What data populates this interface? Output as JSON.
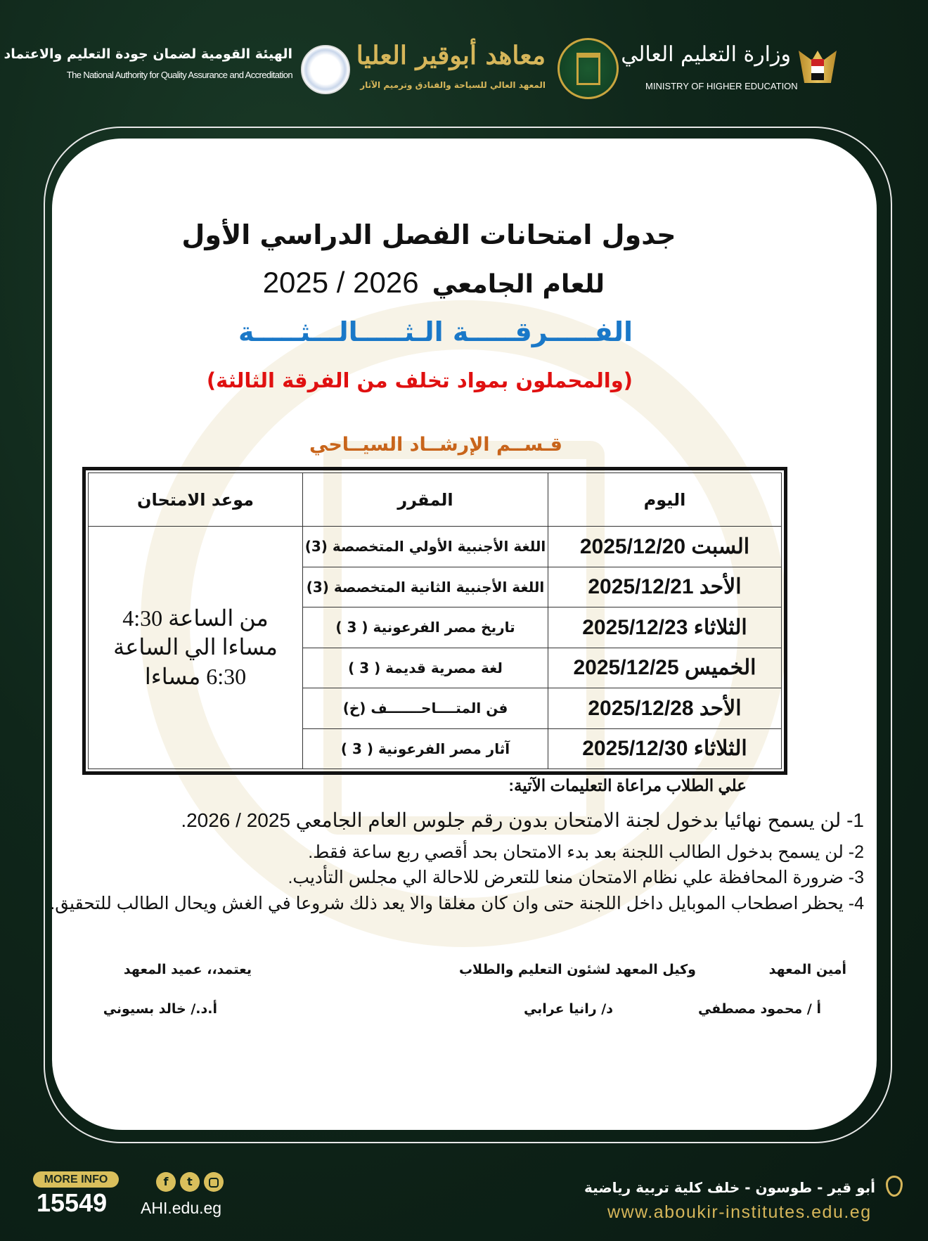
{
  "header": {
    "naqaae_ar": "الهيئة القومية لضمان جودة التعليم والاعتماد",
    "naqaae_en": "The National Authority for Quality Assurance and Accreditation",
    "aboukir_ar": "معاهد أبوقير العليا",
    "aboukir_sub": "المعهد العالي للسياحة والفنادق وترميم الآثار",
    "ministry_ar": "وزارة التعليم العالي",
    "ministry_en": "MINISTRY OF HIGHER EDUCATION"
  },
  "document": {
    "title_line1": "جدول امتحانات الفصل الدراسي الأول",
    "title_line2_label": "للعام الجامعي",
    "title_line2_year": "2025 / 2026",
    "level": "الفـــــرقـــــة الـثـــــالـــثـــــة",
    "subtitle": "(والمحملون بمواد تخلف من الفرقة الثالثة)",
    "department": "قـســم الإرشــاد السيــاحي",
    "colors": {
      "level": "#1a78c8",
      "subtitle": "#e01010",
      "department": "#c8641a"
    }
  },
  "table": {
    "headers": {
      "day": "اليوم",
      "course": "المقرر",
      "time": "موعد الامتحان"
    },
    "time_value_lines": [
      "من الساعة 4:30",
      "مساءا الي الساعة",
      "6:30 مساءا"
    ],
    "rows": [
      {
        "day": "السبت 2025/12/20",
        "course": "اللغة الأجنبية الأولي المتخصصة (3)"
      },
      {
        "day": "الأحد 2025/12/21",
        "course": "اللغة الأجنبية الثانية المتخصصة (3)"
      },
      {
        "day": "الثلاثاء 2025/12/23",
        "course": "تاريخ مصر الفرعونية ( 3 )"
      },
      {
        "day": "الخميس 2025/12/25",
        "course": "لغة مصرية قديمة ( 3 )"
      },
      {
        "day": "الأحد 2025/12/28",
        "course": "فن المتــــاحـــــــف (خ)"
      },
      {
        "day": "الثلاثاء 2025/12/30",
        "course": "آثار مصر الفرعونية ( 3 )"
      }
    ]
  },
  "instructions": {
    "heading": "علي الطلاب مراعاة التعليمات الآتية:",
    "items": [
      "1-   لن يسمح نهائيا بدخول لجنة الامتحان بدون رقم جلوس العام الجامعي 2025 / 2026.",
      "2-  لن يسمح بدخول الطالب اللجنة بعد بدء الامتحان بحد أقصي ربع ساعة فقط.",
      "3-  ضرورة المحافظة علي نظام الامتحان منعا للتعرض للاحالة الي مجلس التأديب.",
      "4-  يحظر اصطحاب الموبايل داخل اللجنة حتى وان كان مغلقا والا يعد ذلك شروعا في الغش ويحال الطالب للتحقيق."
    ]
  },
  "signatures": [
    {
      "title": "أمين المعهد",
      "name": "أ / محمود مصطفي"
    },
    {
      "title": "وكيل المعهد لشئون التعليم والطلاب",
      "name": "د/ رانيا عرابي"
    },
    {
      "title": "يعتمد،، عميد المعهد",
      "name": "أ.د./ خالد بسيوني"
    }
  ],
  "footer": {
    "more_info": "MORE INFO",
    "hotline": "15549",
    "short_site": "AHI.edu.eg",
    "social_icons": [
      "facebook-icon",
      "twitter-icon",
      "instagram-icon"
    ],
    "address": "أبو قير - طوسون - خلف كلية تربية رياضية",
    "website": "www.aboukir-institutes.edu.eg"
  }
}
